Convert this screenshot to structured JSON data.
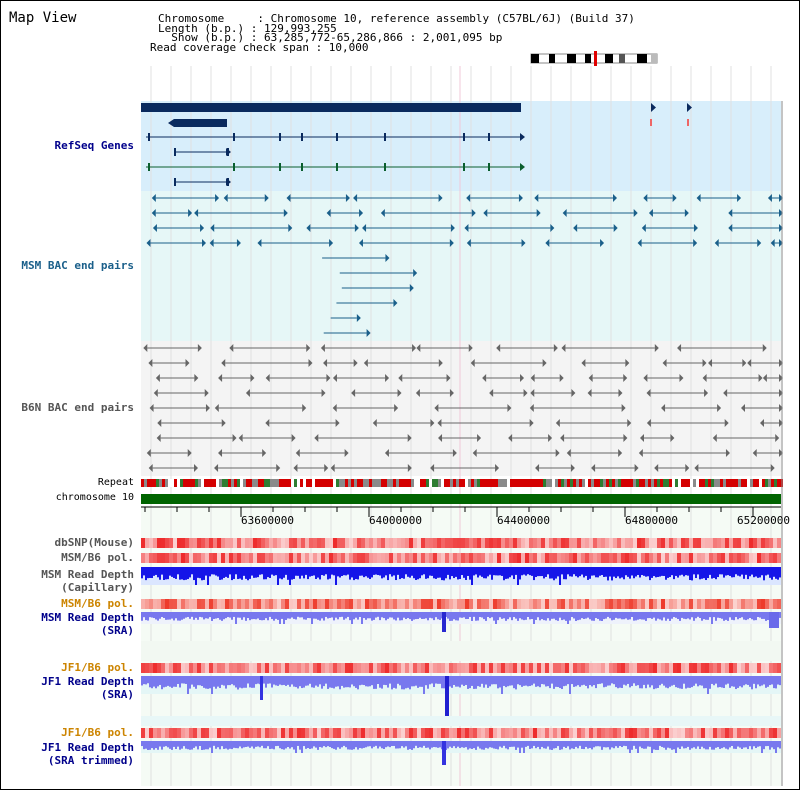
{
  "app_title": "Map View",
  "header": {
    "chromosome_label": "Chromosome     : Chromosome 10, reference assembly (C57BL/6J) (Build 37)",
    "length_label": "Length (b.p.) : 129,993,255",
    "show_label": "  Show (b.p.) : 63,285,772-65,286,866 : 2,001,095 bp",
    "coverage_label": "Read coverage check span : 10,000"
  },
  "tracks": {
    "refseq_genes": "RefSeq Genes",
    "msm_bac": "MSM BAC end pairs",
    "b6n_bac": "B6N BAC end pairs",
    "repeat": "Repeat",
    "chromosome": "chromosome 10",
    "dbsnp": "dbSNP(Mouse)",
    "msm_b6_pol_1": "MSM/B6 pol.",
    "msm_read_depth_cap_1": "MSM Read Depth",
    "msm_read_depth_cap_2": "(Capillary)",
    "msm_b6_pol_2": "MSM/B6 pol.",
    "msm_read_depth_sra_1": "MSM Read Depth",
    "msm_read_depth_sra_2": "(SRA)",
    "jf1_b6_pol_1": "JF1/B6 pol.",
    "jf1_read_depth_sra_1": "JF1 Read Depth",
    "jf1_read_depth_sra_2": "(SRA)",
    "jf1_b6_pol_2": "JF1/B6 pol.",
    "jf1_read_depth_trim_1": "JF1 Read Depth",
    "jf1_read_depth_trim_2": "(SRA trimmed)"
  },
  "ruler": {
    "ticks": [
      "63600000",
      "64000000",
      "64400000",
      "64800000",
      "65200000"
    ]
  },
  "colors": {
    "gene_dark": "#0a2a5e",
    "gene_light": "#8cc0d6",
    "msm_blue": "#1a5f8a",
    "b6n_grey": "#666666",
    "chrom_green": "#006400",
    "label_blue": "#00008b",
    "label_orange": "#cc8400",
    "depth_blue": "#1515e8",
    "depth_violet": "#7878ee"
  }
}
